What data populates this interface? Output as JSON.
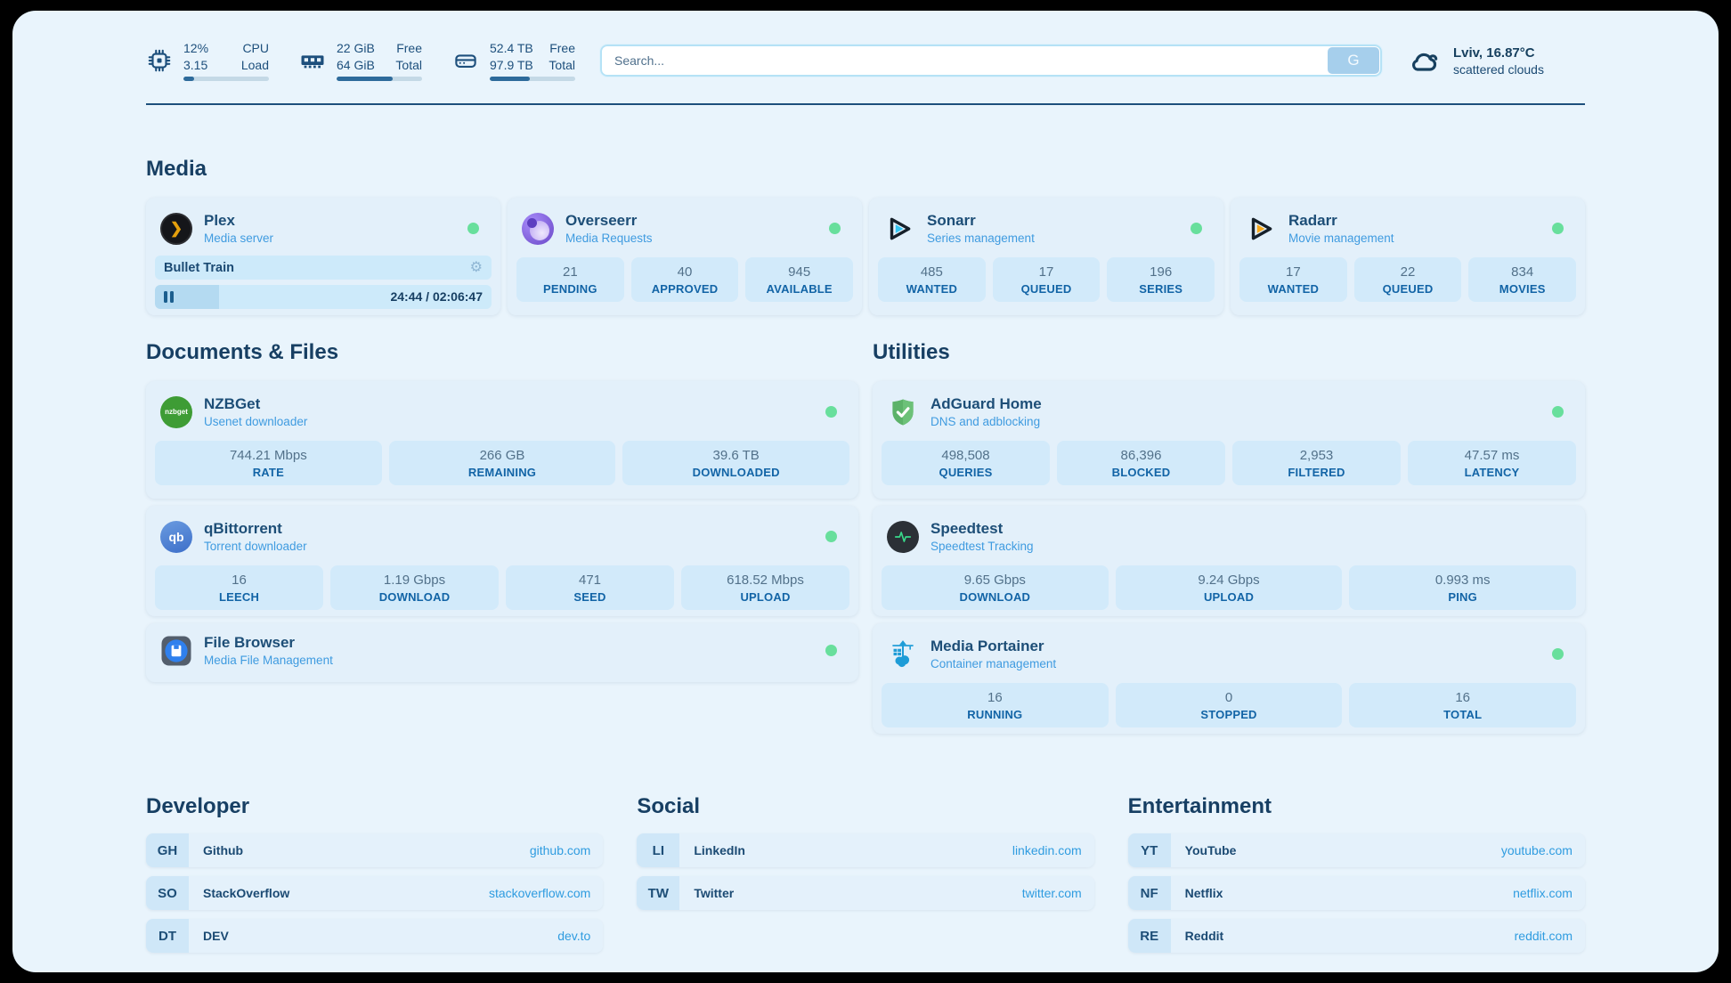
{
  "colors": {
    "page_bg": "#e9f4fc",
    "card_bg": "#e3f0fa",
    "stat_box_bg": "#d2eafa",
    "navy_text": "#1b4a73",
    "accent_blue": "#3f9be0",
    "label_blue": "#1264a6",
    "status_green": "#68df9c",
    "link_blue": "#2f9ce0"
  },
  "header": {
    "system_stats": [
      {
        "icon": "cpu-icon",
        "value_top": "12%",
        "value_bottom": "3.15",
        "label_top": "CPU",
        "label_bottom": "Load",
        "progress": 12
      },
      {
        "icon": "ram-icon",
        "value_top": "22 GiB",
        "value_bottom": "64 GiB",
        "label_top": "Free",
        "label_bottom": "Total",
        "progress": 66
      },
      {
        "icon": "disk-icon",
        "value_top": "52.4 TB",
        "value_bottom": "97.9 TB",
        "label_top": "Free",
        "label_bottom": "Total",
        "progress": 47
      }
    ],
    "search": {
      "placeholder": "Search...",
      "button_label": "G"
    },
    "weather": {
      "location_temp": "Lviv, 16.87°C",
      "condition": "scattered clouds"
    }
  },
  "sections": {
    "media": {
      "title": "Media",
      "plex": {
        "name": "Plex",
        "subtitle": "Media server",
        "now_playing": "Bullet Train",
        "time": "24:44 / 02:06:47",
        "progress": 19
      },
      "overseerr": {
        "name": "Overseerr",
        "subtitle": "Media Requests",
        "stats": [
          {
            "value": "21",
            "label": "PENDING"
          },
          {
            "value": "40",
            "label": "APPROVED"
          },
          {
            "value": "945",
            "label": "AVAILABLE"
          }
        ]
      },
      "sonarr": {
        "name": "Sonarr",
        "subtitle": "Series management",
        "stats": [
          {
            "value": "485",
            "label": "WANTED"
          },
          {
            "value": "17",
            "label": "QUEUED"
          },
          {
            "value": "196",
            "label": "SERIES"
          }
        ]
      },
      "radarr": {
        "name": "Radarr",
        "subtitle": "Movie management",
        "stats": [
          {
            "value": "17",
            "label": "WANTED"
          },
          {
            "value": "22",
            "label": "QUEUED"
          },
          {
            "value": "834",
            "label": "MOVIES"
          }
        ]
      }
    },
    "documents": {
      "title": "Documents & Files",
      "nzbget": {
        "name": "NZBGet",
        "subtitle": "Usenet downloader",
        "icon_text": "nzbget",
        "stats": [
          {
            "value": "744.21 Mbps",
            "label": "RATE"
          },
          {
            "value": "266 GB",
            "label": "REMAINING"
          },
          {
            "value": "39.6 TB",
            "label": "DOWNLOADED"
          }
        ]
      },
      "qbittorrent": {
        "name": "qBittorrent",
        "subtitle": "Torrent downloader",
        "icon_text": "qb",
        "stats": [
          {
            "value": "16",
            "label": "LEECH"
          },
          {
            "value": "1.19 Gbps",
            "label": "DOWNLOAD"
          },
          {
            "value": "471",
            "label": "SEED"
          },
          {
            "value": "618.52 Mbps",
            "label": "UPLOAD"
          }
        ]
      },
      "filebrowser": {
        "name": "File Browser",
        "subtitle": "Media File Management"
      }
    },
    "utilities": {
      "title": "Utilities",
      "adguard": {
        "name": "AdGuard Home",
        "subtitle": "DNS and adblocking",
        "stats": [
          {
            "value": "498,508",
            "label": "QUERIES"
          },
          {
            "value": "86,396",
            "label": "BLOCKED"
          },
          {
            "value": "2,953",
            "label": "FILTERED"
          },
          {
            "value": "47.57 ms",
            "label": "LATENCY"
          }
        ]
      },
      "speedtest": {
        "name": "Speedtest",
        "subtitle": "Speedtest Tracking",
        "stats": [
          {
            "value": "9.65 Gbps",
            "label": "DOWNLOAD"
          },
          {
            "value": "9.24 Gbps",
            "label": "UPLOAD"
          },
          {
            "value": "0.993 ms",
            "label": "PING"
          }
        ]
      },
      "portainer": {
        "name": "Media Portainer",
        "subtitle": "Container management",
        "stats": [
          {
            "value": "16",
            "label": "RUNNING"
          },
          {
            "value": "0",
            "label": "STOPPED"
          },
          {
            "value": "16",
            "label": "TOTAL"
          }
        ]
      }
    },
    "link_groups": [
      {
        "title": "Developer",
        "links": [
          {
            "abbr": "GH",
            "name": "Github",
            "url": "github.com"
          },
          {
            "abbr": "SO",
            "name": "StackOverflow",
            "url": "stackoverflow.com"
          },
          {
            "abbr": "DT",
            "name": "DEV",
            "url": "dev.to"
          }
        ]
      },
      {
        "title": "Social",
        "links": [
          {
            "abbr": "LI",
            "name": "LinkedIn",
            "url": "linkedin.com"
          },
          {
            "abbr": "TW",
            "name": "Twitter",
            "url": "twitter.com"
          }
        ]
      },
      {
        "title": "Entertainment",
        "links": [
          {
            "abbr": "YT",
            "name": "YouTube",
            "url": "youtube.com"
          },
          {
            "abbr": "NF",
            "name": "Netflix",
            "url": "netflix.com"
          },
          {
            "abbr": "RE",
            "name": "Reddit",
            "url": "reddit.com"
          }
        ]
      }
    ]
  }
}
